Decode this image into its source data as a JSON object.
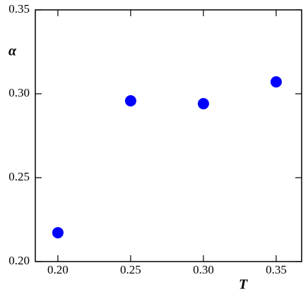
{
  "chart_data": {
    "type": "scatter",
    "x_label": "T",
    "y_label": "α",
    "x": [
      0.2,
      0.25,
      0.3,
      0.35
    ],
    "values": [
      0.2172,
      0.2958,
      0.2941,
      0.3071
    ],
    "color": "#0000ff",
    "xlim": [
      0.1845,
      0.3675
    ],
    "ylim": [
      0.2,
      0.35
    ],
    "xticks": [
      {
        "value": 0.2,
        "label": "0.20"
      },
      {
        "value": 0.25,
        "label": "0.25"
      },
      {
        "value": 0.3,
        "label": "0.30"
      },
      {
        "value": 0.35,
        "label": "0.35"
      }
    ],
    "yticks": [
      {
        "value": 0.2,
        "label": "0.20"
      },
      {
        "value": 0.25,
        "label": "0.25"
      },
      {
        "value": 0.3,
        "label": "0.30"
      },
      {
        "value": 0.35,
        "label": "0.35"
      }
    ],
    "grid": false
  }
}
